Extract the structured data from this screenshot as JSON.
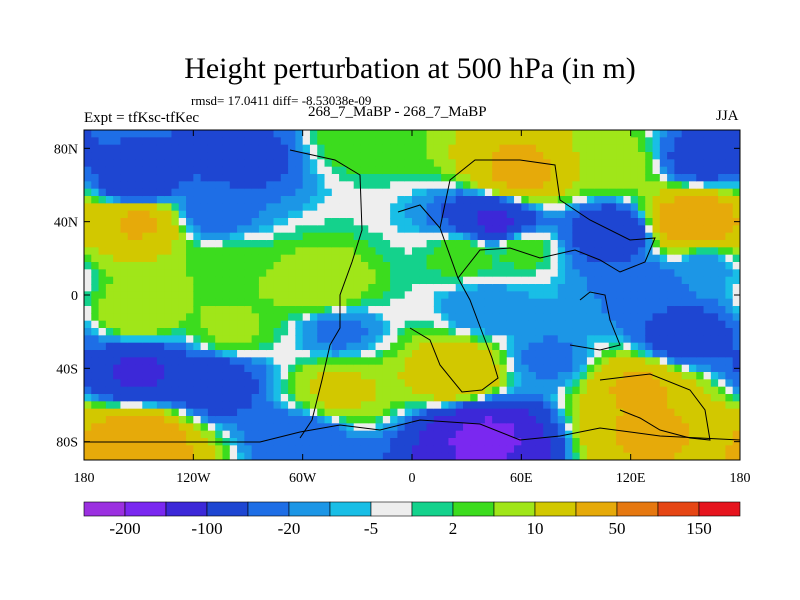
{
  "chart_data": {
    "type": "heatmap",
    "title": "Height perturbation at 500 hPa (in m)",
    "stats": "rmsd= 17.0411 diff= -8.53038e-09",
    "subtitle": "268_7_MaBP - 268_7_MaBP",
    "left_label": "Expt = tfKsc-tfKec",
    "right_label": "JJA",
    "x_axis": {
      "range": [
        -180,
        180
      ],
      "ticks": [
        {
          "value": -180,
          "label": "180"
        },
        {
          "value": -120,
          "label": "120W"
        },
        {
          "value": -60,
          "label": "60W"
        },
        {
          "value": 0,
          "label": "0"
        },
        {
          "value": 60,
          "label": "60E"
        },
        {
          "value": 120,
          "label": "120E"
        },
        {
          "value": 180,
          "label": "180"
        }
      ]
    },
    "y_axis": {
      "range": [
        -90,
        90
      ],
      "ticks": [
        {
          "value": 80,
          "label": "80N"
        },
        {
          "value": 40,
          "label": "40N"
        },
        {
          "value": 0,
          "label": "0"
        },
        {
          "value": -40,
          "label": "40S"
        },
        {
          "value": -80,
          "label": "80S"
        }
      ]
    },
    "colorbar": {
      "colors": [
        "#9b30e0",
        "#7a28f0",
        "#3c28d8",
        "#1e46d2",
        "#1e6ee6",
        "#1c96e6",
        "#19bee6",
        "#eeeeee",
        "#14d28c",
        "#3cdc1e",
        "#a0e619",
        "#d2c800",
        "#e6aa0a",
        "#e67810",
        "#e64614",
        "#e6141e"
      ],
      "levels": [
        "-200",
        "-100",
        "-20",
        "-5",
        "2",
        "10",
        "50",
        "150"
      ]
    },
    "anomalies": [
      {
        "lon": -150,
        "lat": 60,
        "value": -40
      },
      {
        "lon": -95,
        "lat": 75,
        "value": -30
      },
      {
        "lon": -30,
        "lat": 85,
        "value": 8
      },
      {
        "lon": 60,
        "lat": 67,
        "value": 60
      },
      {
        "lon": 110,
        "lat": 72,
        "value": 15
      },
      {
        "lon": 160,
        "lat": 74,
        "value": -30
      },
      {
        "lon": -150,
        "lat": 40,
        "value": 55
      },
      {
        "lon": -110,
        "lat": 44,
        "value": -15
      },
      {
        "lon": 45,
        "lat": 40,
        "value": -55
      },
      {
        "lon": 110,
        "lat": 34,
        "value": -40
      },
      {
        "lon": 155,
        "lat": 40,
        "value": 90
      },
      {
        "lon": -100,
        "lat": 14,
        "value": 10
      },
      {
        "lon": -50,
        "lat": 5,
        "value": 20
      },
      {
        "lon": 30,
        "lat": 22,
        "value": 10
      },
      {
        "lon": 60,
        "lat": 25,
        "value": 8
      },
      {
        "lon": 160,
        "lat": 15,
        "value": -8
      },
      {
        "lon": 130,
        "lat": 5,
        "value": -15
      },
      {
        "lon": -150,
        "lat": -10,
        "value": 20
      },
      {
        "lon": -100,
        "lat": -18,
        "value": 12
      },
      {
        "lon": -40,
        "lat": -20,
        "value": -12
      },
      {
        "lon": 40,
        "lat": -8,
        "value": -10
      },
      {
        "lon": 150,
        "lat": -22,
        "value": -35
      },
      {
        "lon": -150,
        "lat": -42,
        "value": -55
      },
      {
        "lon": -110,
        "lat": -48,
        "value": -35
      },
      {
        "lon": -40,
        "lat": -52,
        "value": 25
      },
      {
        "lon": 25,
        "lat": -42,
        "value": 45
      },
      {
        "lon": 75,
        "lat": -35,
        "value": -12
      },
      {
        "lon": 125,
        "lat": -52,
        "value": 55
      },
      {
        "lon": -150,
        "lat": -80,
        "value": 80
      },
      {
        "lon": -60,
        "lat": -78,
        "value": -20
      },
      {
        "lon": 40,
        "lat": -78,
        "value": -110
      },
      {
        "lon": 130,
        "lat": -75,
        "value": 55
      }
    ]
  }
}
